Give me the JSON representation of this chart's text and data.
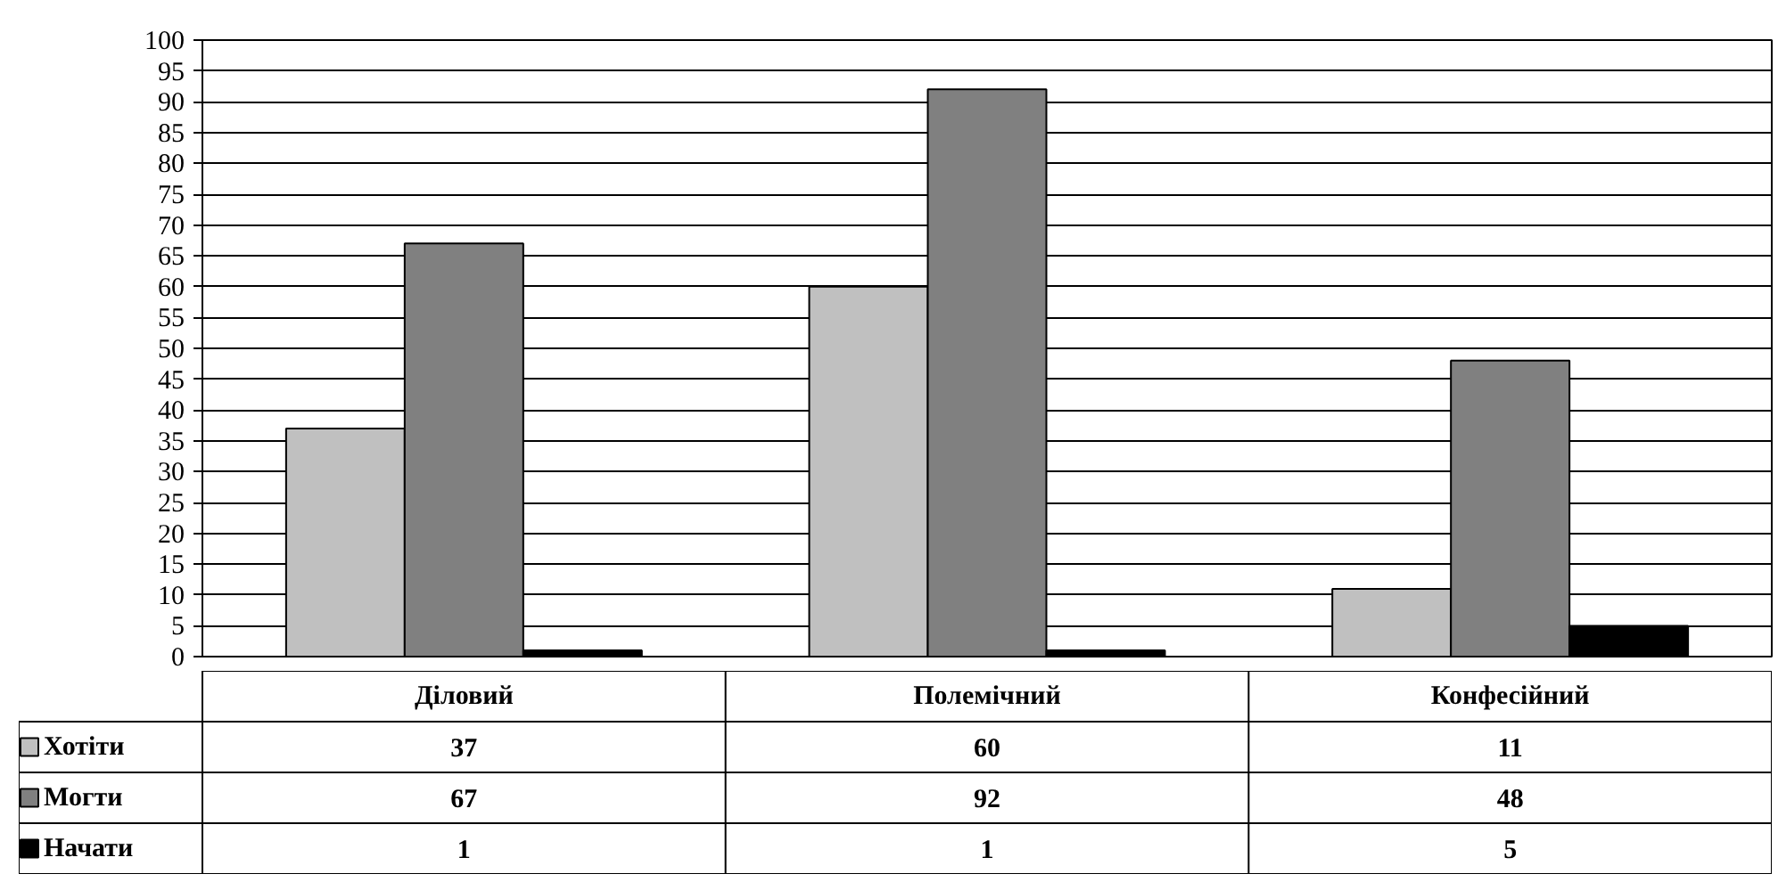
{
  "chart_data": {
    "type": "bar",
    "categories": [
      "Діловий",
      "Полемічний",
      "Конфесійний"
    ],
    "series": [
      {
        "name": "Хотіти",
        "color": "#c0c0c0",
        "values": [
          37,
          60,
          11
        ]
      },
      {
        "name": "Могти",
        "color": "#808080",
        "values": [
          67,
          92,
          48
        ]
      },
      {
        "name": "Начати",
        "color": "#000000",
        "values": [
          1,
          1,
          5
        ]
      }
    ],
    "ylim": [
      0,
      100
    ],
    "yticks": [
      0,
      5,
      10,
      15,
      20,
      25,
      30,
      35,
      40,
      45,
      50,
      55,
      60,
      65,
      70,
      75,
      80,
      85,
      90,
      95,
      100
    ],
    "grid": "y",
    "legend": "bottom left",
    "data_labels": true
  }
}
